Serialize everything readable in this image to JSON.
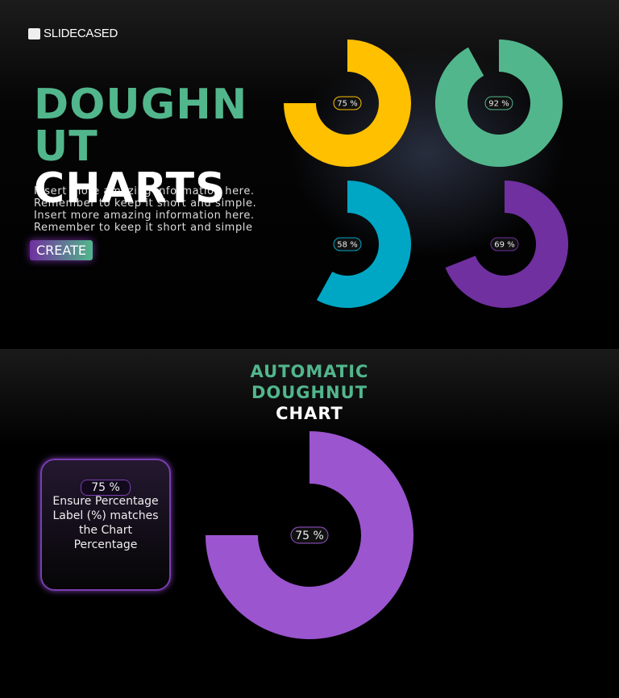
{
  "logo": "SLIDECASED",
  "slide1": {
    "title_green": "DOUGHNUT",
    "title_white": "CHARTS",
    "body_lines": [
      "Insert more amazing information here.",
      "Remember to keep it short and simple.",
      "Insert more amazing information here.",
      "Remember to keep it short and simple"
    ],
    "button": "CREATE",
    "charts": [
      {
        "value": 75,
        "value_label": "75 %",
        "color": "#ffc000"
      },
      {
        "value": 92,
        "value_label": "92 %",
        "color": "#52b68c"
      },
      {
        "value": 58,
        "value_label": "58 %",
        "color": "#00a7c4"
      },
      {
        "value": 69,
        "value_label": "69 %",
        "color": "#7030a0"
      }
    ]
  },
  "slide2": {
    "title_green": "AUTOMATIC DOUGHNUT",
    "title_white": "CHART",
    "note_label": "75 %",
    "note_text": "Ensure Percentage Label (%) matches the Chart Percentage",
    "chart": {
      "value": 75,
      "value_label": "75 %",
      "color": "#9b55cf"
    }
  }
}
